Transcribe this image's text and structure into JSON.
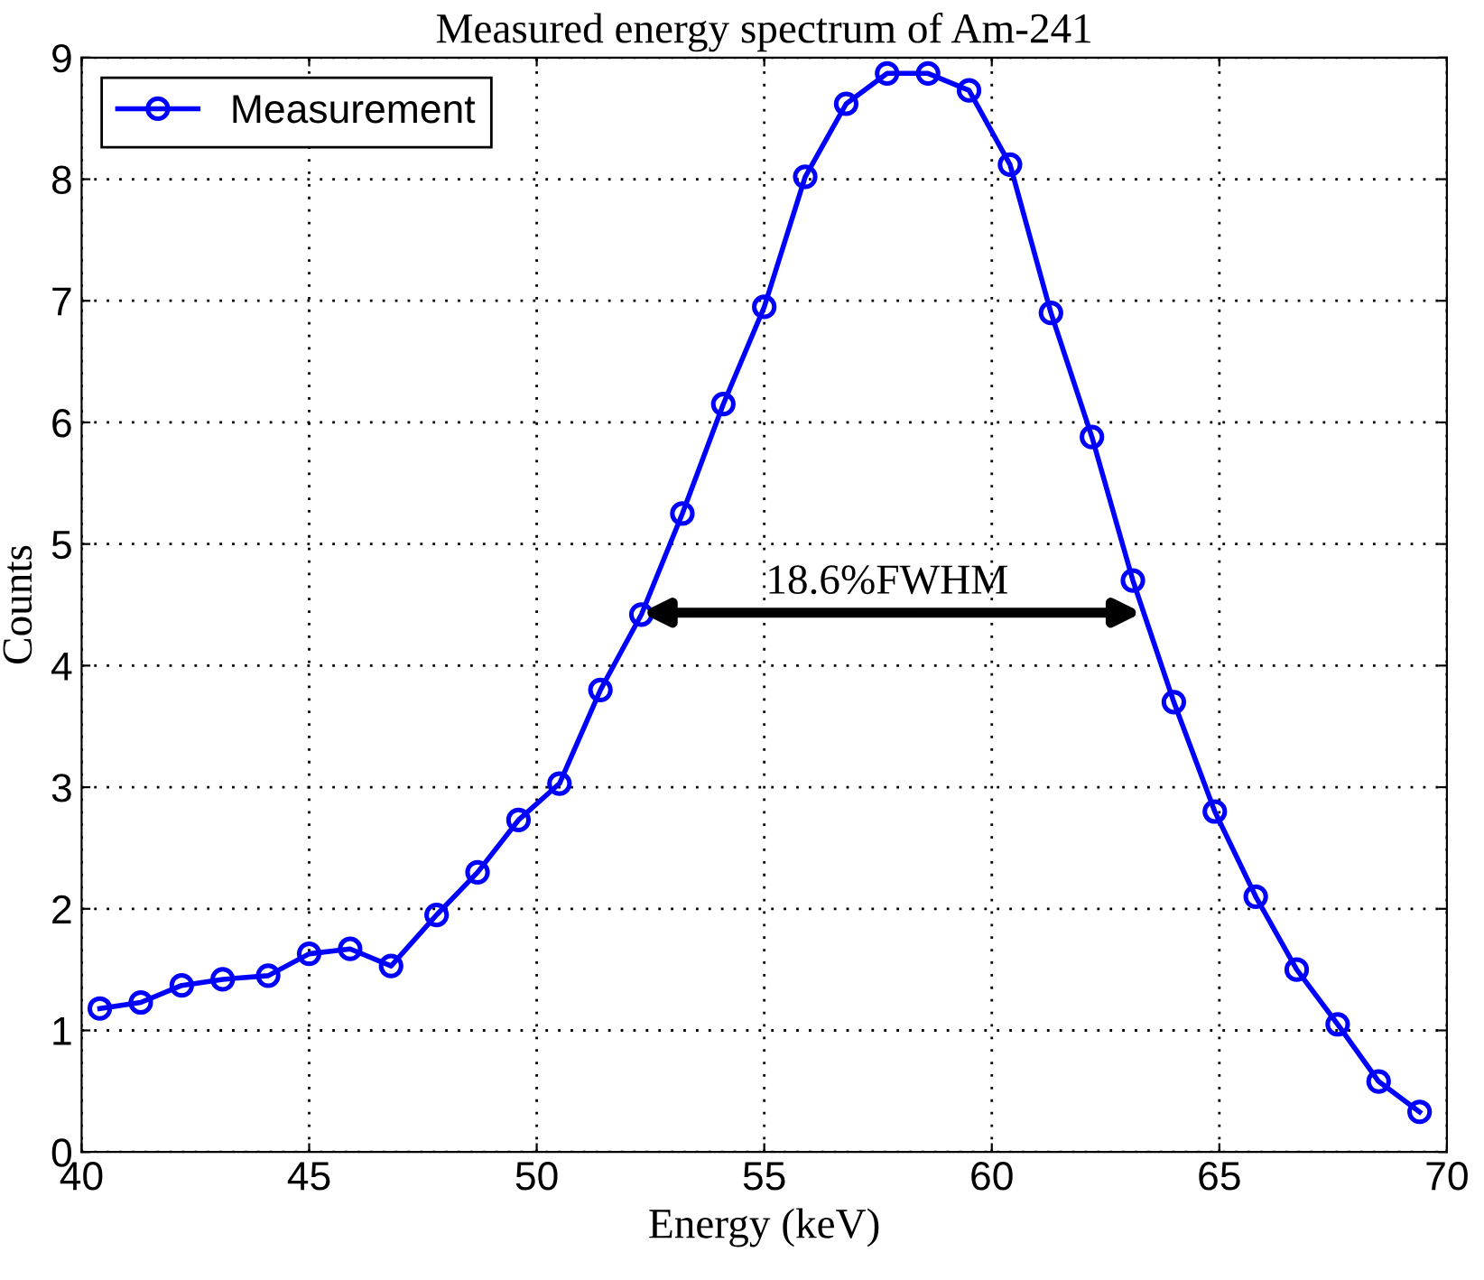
{
  "chart_data": {
    "type": "line",
    "title": "Measured energy spectrum of Am-241",
    "xlabel": "Energy (keV)",
    "ylabel": "Counts",
    "x": [
      40.4,
      41.3,
      42.2,
      43.1,
      44.1,
      45.0,
      45.9,
      46.8,
      47.8,
      48.7,
      49.6,
      50.5,
      51.4,
      52.3,
      53.2,
      54.1,
      55.0,
      55.9,
      56.8,
      57.7,
      58.6,
      59.5,
      60.4,
      61.3,
      62.2,
      63.1,
      64.0,
      64.9,
      65.8,
      66.7,
      67.6,
      68.5,
      69.4
    ],
    "series": [
      {
        "name": "Measurement",
        "color": "#0000ff",
        "values": [
          1.18,
          1.23,
          1.37,
          1.42,
          1.45,
          1.63,
          1.67,
          1.53,
          1.95,
          2.3,
          2.73,
          3.03,
          3.8,
          4.42,
          5.25,
          6.15,
          6.95,
          8.02,
          8.62,
          8.87,
          8.87,
          8.73,
          8.12,
          6.9,
          5.88,
          4.7,
          3.7,
          2.8,
          2.1,
          1.5,
          1.05,
          0.58,
          0.33
        ]
      }
    ],
    "annotations": [
      "18.6%FWHM"
    ],
    "xlim": [
      40,
      70
    ],
    "ylim": [
      0,
      9
    ],
    "xticks": [
      40,
      45,
      50,
      55,
      60,
      65,
      70
    ],
    "yticks": [
      0,
      1,
      2,
      3,
      4,
      5,
      6,
      7,
      8,
      9
    ],
    "grid": true,
    "legend": "top left",
    "marker": "circle",
    "line_style": "solid"
  }
}
